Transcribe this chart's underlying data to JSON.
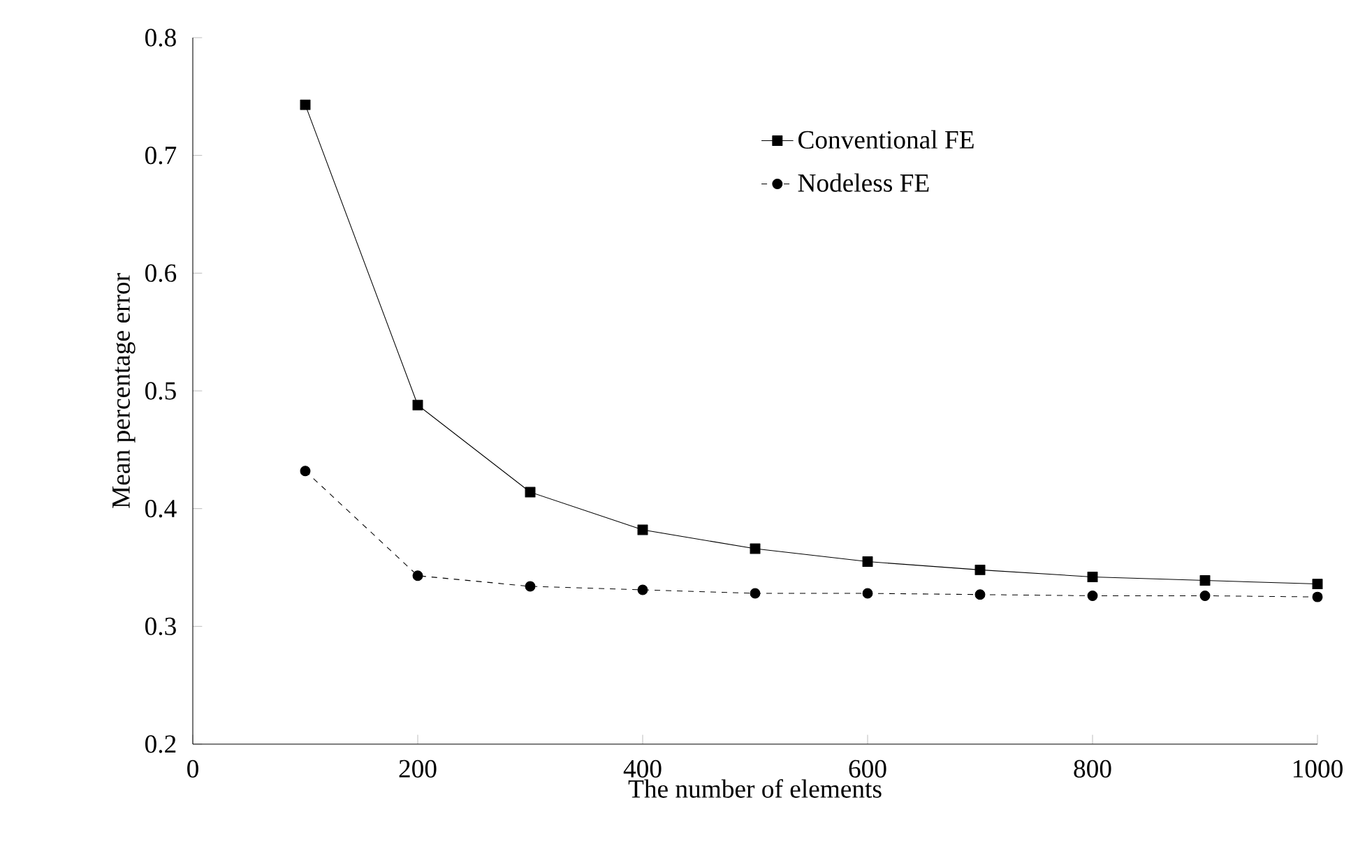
{
  "chart_data": {
    "type": "line",
    "xlabel": "The number of elements",
    "ylabel": "Mean percentage error",
    "x": [
      100,
      200,
      300,
      400,
      500,
      600,
      700,
      800,
      900,
      1000
    ],
    "series": [
      {
        "name": "Conventional FE",
        "color": "#000000",
        "marker": "square",
        "line_style": "solid",
        "values": [
          0.743,
          0.488,
          0.414,
          0.382,
          0.366,
          0.355,
          0.348,
          0.342,
          0.339,
          0.336
        ]
      },
      {
        "name": "Nodeless FE",
        "color": "#000000",
        "marker": "circle",
        "line_style": "dashed",
        "values": [
          0.432,
          0.343,
          0.334,
          0.331,
          0.328,
          0.328,
          0.327,
          0.326,
          0.326,
          0.325
        ]
      }
    ],
    "xlim": [
      0,
      1000
    ],
    "ylim": [
      0.2,
      0.8
    ],
    "xticks": [
      0,
      200,
      400,
      600,
      800,
      1000
    ],
    "yticks": [
      0.2,
      0.3,
      0.4,
      0.5,
      0.6,
      0.7,
      0.8
    ],
    "grid": false,
    "legend": "top right"
  }
}
